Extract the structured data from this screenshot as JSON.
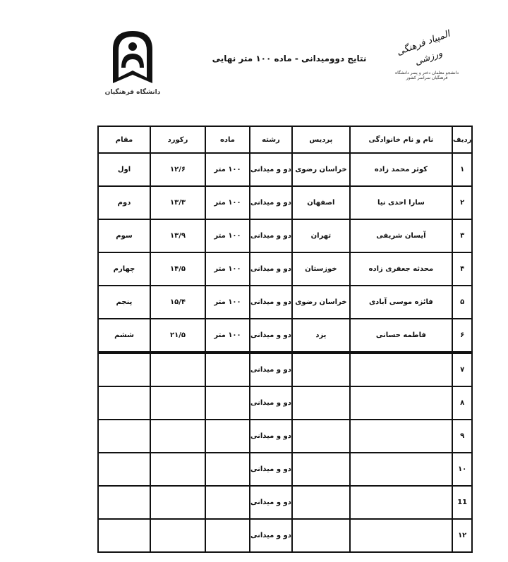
{
  "header": {
    "title": "نتایج دوومیدانی - ماده ۱۰۰ متر نهایی",
    "left_logo_text": "دانشگاه فرهنگیان",
    "right_logo_text": "المپیاد فرهنگی ورزشی",
    "right_logo_caption": "دانشجو معلمان دختر و پسر دانشگاه فرهنگیان سراسر کشور"
  },
  "table": {
    "columns": [
      "ردیف",
      "نام و نام خانوادگی",
      "پردیس",
      "رشته",
      "ماده",
      "رکورد",
      "مقام"
    ],
    "rows": [
      [
        "۱",
        "کوثر محمد زاده",
        "خراسان رضوی",
        "دو و میدانی",
        "۱۰۰ متر",
        "۱۲/۶",
        "اول"
      ],
      [
        "۲",
        "سارا احدی نیا",
        "اصفهان",
        "دو و میدانی",
        "۱۰۰ متر",
        "۱۳/۳",
        "دوم"
      ],
      [
        "۳",
        "آیسان شریفی",
        "تهران",
        "دو و میدانی",
        "۱۰۰ متر",
        "۱۳/۹",
        "سوم"
      ],
      [
        "۴",
        "محدثه جعفری زاده",
        "خوزستان",
        "دو و میدانی",
        "۱۰۰ متر",
        "۱۴/۵",
        "چهارم"
      ],
      [
        "۵",
        "فائزه موسی آبادی",
        "خراسان رضوی",
        "دو و میدانی",
        "۱۰۰ متر",
        "۱۵/۴",
        "پنجم"
      ],
      [
        "۶",
        "فاطمه حسانی",
        "یزد",
        "دو و میدانی",
        "۱۰۰ متر",
        "۲۱/۵",
        "ششم"
      ],
      [
        "۷",
        "",
        "",
        "دو و میدانی",
        "",
        "",
        ""
      ],
      [
        "۸",
        "",
        "",
        "دو و میدانی",
        "",
        "",
        ""
      ],
      [
        "۹",
        "",
        "",
        "دو و میدانی",
        "",
        "",
        ""
      ],
      [
        "۱۰",
        "",
        "",
        "دو و میدانی",
        "",
        "",
        ""
      ],
      [
        "11",
        "",
        "",
        "دو و میدانی",
        "",
        "",
        ""
      ],
      [
        "۱۲",
        "",
        "",
        "دو و میدانی",
        "",
        "",
        ""
      ]
    ]
  }
}
